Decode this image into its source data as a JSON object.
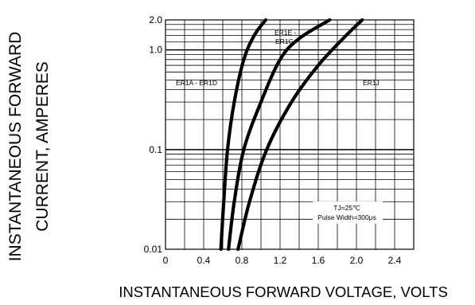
{
  "chart_data": {
    "type": "line",
    "title": "",
    "xlabel": "INSTANTANEOUS FORWARD VOLTAGE,  VOLTS",
    "ylabel_line1": "INSTANTANEOUS FORWARD",
    "ylabel_line2": "CURRENT, AMPERES",
    "x_scale": "linear",
    "y_scale": "log",
    "xlim": [
      0,
      2.6
    ],
    "ylim": [
      0.01,
      2.0
    ],
    "grid": true,
    "x_ticks": [
      0,
      0.4,
      0.8,
      1.2,
      1.6,
      2.0,
      2.4
    ],
    "x_tick_labels": [
      "0",
      "0.4",
      "0.8",
      "1.2",
      "1.6",
      "2.0",
      "2.4"
    ],
    "y_ticks": [
      0.01,
      0.1,
      1.0,
      2.0
    ],
    "y_tick_labels": [
      "0.01",
      "0.1",
      "1.0",
      "2.0"
    ],
    "series": [
      {
        "name": "ER1A - ER1D",
        "x": [
          0.58,
          0.61,
          0.65,
          0.72,
          0.82,
          0.93,
          1.05
        ],
        "y": [
          0.01,
          0.03,
          0.1,
          0.3,
          0.8,
          1.4,
          2.0
        ]
      },
      {
        "name": "ER1E - ER1G",
        "x": [
          0.66,
          0.72,
          0.82,
          1.0,
          1.2,
          1.4,
          1.72
        ],
        "y": [
          0.01,
          0.03,
          0.1,
          0.3,
          0.8,
          1.3,
          2.0
        ]
      },
      {
        "name": "ER1J",
        "x": [
          0.76,
          0.88,
          1.06,
          1.32,
          1.6,
          1.86,
          2.06
        ],
        "y": [
          0.01,
          0.03,
          0.1,
          0.3,
          0.7,
          1.3,
          2.0
        ]
      }
    ],
    "annotations": {
      "er1e_line1": "ER1E -",
      "er1e_line2": "ER1G",
      "er1a": "ER1A - ER1D",
      "er1j": "ER1J",
      "cond_line1": "TJ=25℃",
      "cond_line2": "Pulse Width=300μs"
    }
  }
}
